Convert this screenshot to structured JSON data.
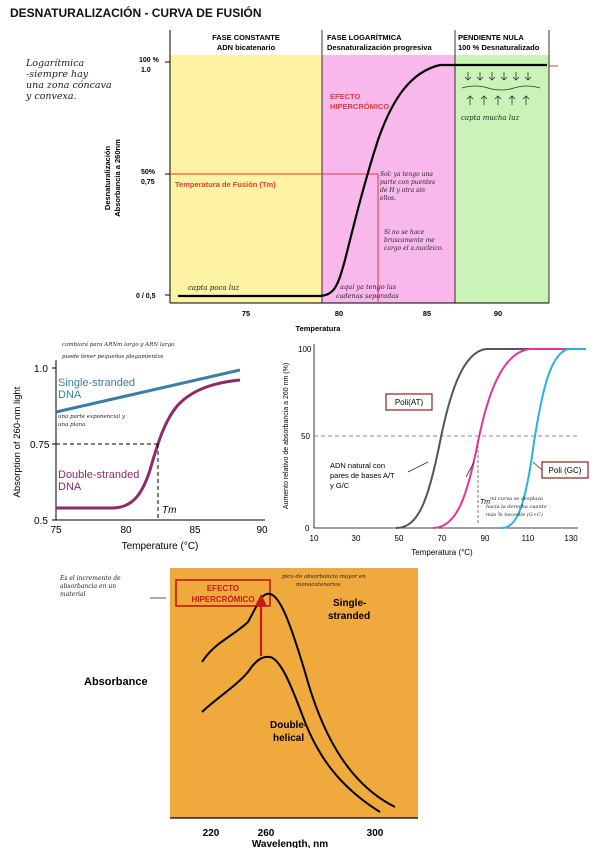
{
  "page_title": "DESNATURALIZACIÓN - CURVA DE FUSIÓN",
  "top_notes": [
    "Logarítmica",
    "-siempre hay",
    "una zona cóncava",
    "y convexa."
  ],
  "chart1": {
    "phases": [
      {
        "line1": "FASE CONSTANTE",
        "line2": "ADN bicatenario"
      },
      {
        "line1": "FASE LOGARÍTMICA",
        "line2": "Desnaturalización progresiva"
      },
      {
        "line1": "PENDIENTE NULA",
        "line2": "100 % Desnaturalizado"
      }
    ],
    "ylabel1": "Desnaturalización",
    "ylabel2": "Absorbancia a 260nm",
    "xlabel": "Temperatura",
    "y_ticks": [
      "100 %",
      "1.0",
      "50%",
      "0,75",
      "0 / 0,5"
    ],
    "x_ticks": [
      "75",
      "80",
      "85",
      "90"
    ],
    "tm_label": "Temperatura de Fusión (Tm)",
    "efecto_label": [
      "EFECTO",
      "HIPERCRÓMICO"
    ],
    "note_mid": [
      "Sol: ya tengo una",
      "parte con puentes",
      "de H y otra sin",
      "ellos."
    ],
    "note_low": [
      "Si no se hace",
      "bruscamente me",
      "cargo el a.nucleico."
    ],
    "note_bottom_left": "capta poca luz",
    "note_bottom_right": [
      "aquí ya tengo las",
      "cadenas separadas"
    ],
    "note_top_right": "capta mucha luz"
  },
  "chart2": {
    "note_top": [
      "cambiará para ARNm largo y ARN largo",
      "puede tener pequeños plegamientos"
    ],
    "note_mid": [
      "una parte exponencial y",
      "una plana"
    ],
    "single_label": [
      "Single-stranded",
      "DNA"
    ],
    "double_label": [
      "Double-stranded",
      "DNA"
    ],
    "ylabel": "Absorption of 260-nm light",
    "xlabel": "Temperature (°C)",
    "x_ticks": [
      "75",
      "80",
      "85",
      "90"
    ],
    "y_ticks": [
      "0.5",
      "0.75",
      "1.0"
    ],
    "tm": "Tm"
  },
  "chart3": {
    "ylabel": "Aumento relativo de absorbancia a 260 nm (%)",
    "xlabel": "Temperatura (°C)",
    "x_ticks": [
      "10",
      "30",
      "50",
      "70",
      "90",
      "110",
      "130"
    ],
    "y_ticks": [
      "0",
      "50",
      "100"
    ],
    "label_at": "Poli(AT)",
    "label_gc": "Poli (GC)",
    "natural_label": [
      "ADN natural con",
      "pares de bases A/T",
      "y G/C"
    ],
    "tm": "Tm",
    "note": [
      "mi curva se desplaza",
      "hacia la derecha cuanto",
      "más % necesite (G+C)"
    ]
  },
  "chart4": {
    "note_left": [
      "Es el incremento de",
      "absorbancia en un",
      "material"
    ],
    "note_top": [
      "pico de absorbancia mayor en",
      "monocatenarios"
    ],
    "efecto_label": [
      "EFECTO",
      "HIPERCRÓMICO"
    ],
    "single_label": [
      "Single-",
      "stranded"
    ],
    "double_label": [
      "Double-",
      "helical"
    ],
    "ylabel": "Absorbance",
    "xlabel": "Wavelength, nm",
    "x_ticks": [
      "220",
      "260",
      "300"
    ]
  }
}
